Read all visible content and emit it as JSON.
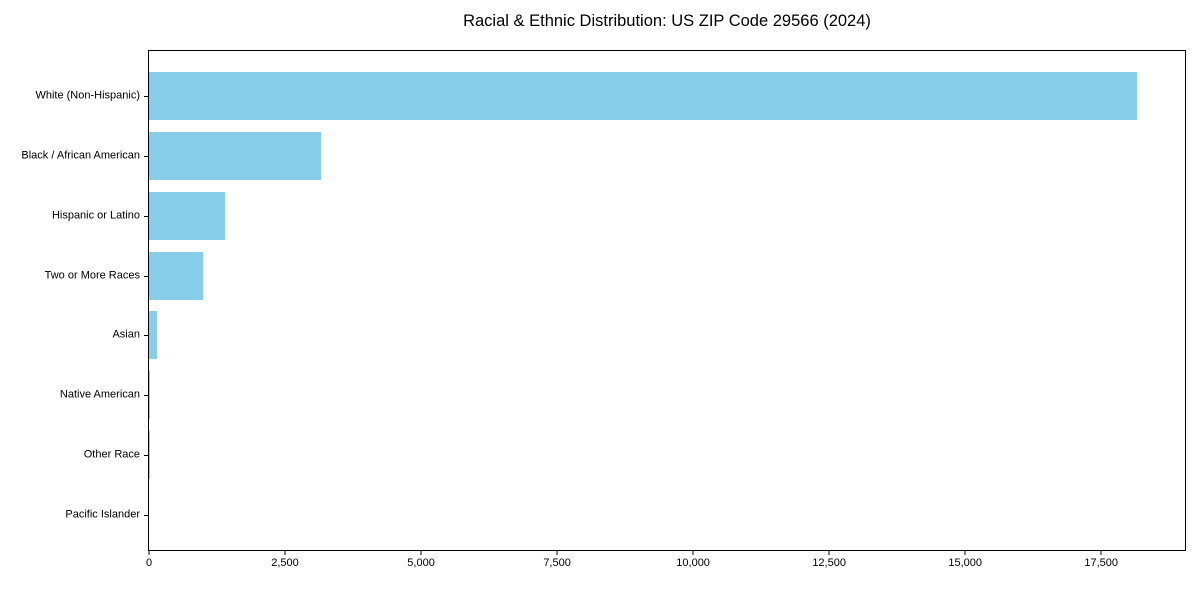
{
  "chart_data": {
    "type": "bar",
    "orientation": "horizontal",
    "title": "Racial & Ethnic Distribution: US ZIP Code 29566 (2024)",
    "categories": [
      "White (Non-Hispanic)",
      "Black / African American",
      "Hispanic or Latino",
      "Two or More Races",
      "Asian",
      "Native American",
      "Other Race",
      "Pacific Islander"
    ],
    "values": [
      18150,
      3170,
      1390,
      990,
      145,
      25,
      10,
      0
    ],
    "xlabel": "",
    "ylabel": "",
    "xlim": [
      0,
      19040
    ],
    "x_ticks": [
      0,
      2500,
      5000,
      7500,
      10000,
      12500,
      15000,
      17500
    ],
    "x_tick_labels": [
      "0",
      "2,500",
      "5,000",
      "7,500",
      "10,000",
      "12,500",
      "15,000",
      "17,500"
    ],
    "grid": false,
    "legend": "none",
    "bar_color": "#87CEEB",
    "text_color": "#000000",
    "spine_color": "#000000",
    "background_color": "#ffffff"
  }
}
